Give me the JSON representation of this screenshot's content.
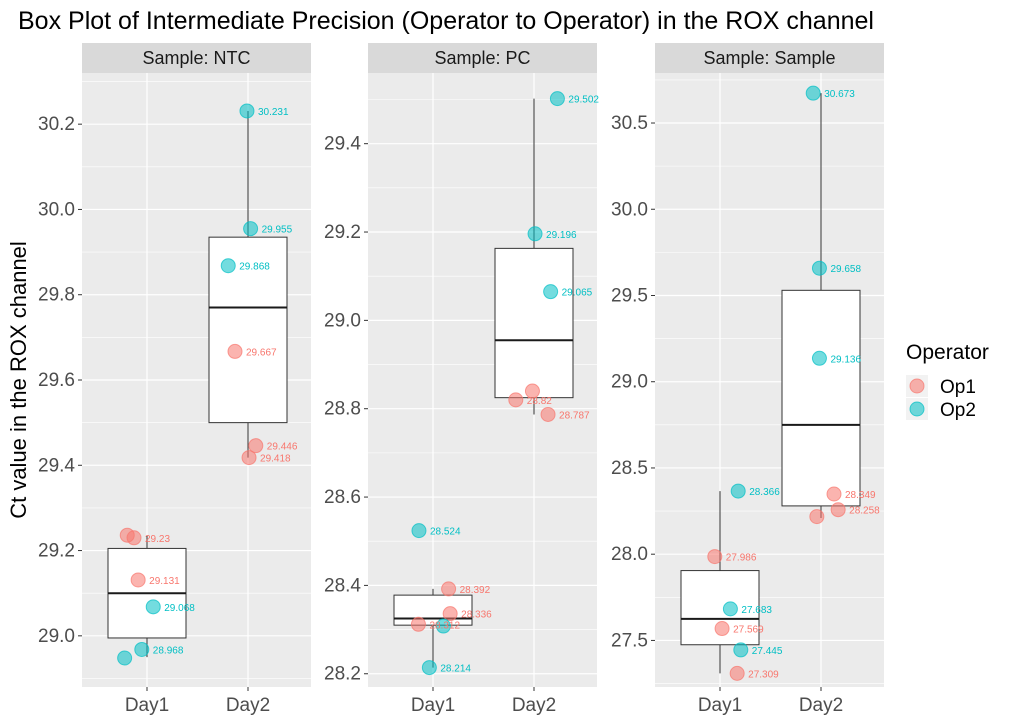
{
  "chart_data": {
    "type": "box",
    "title": "Box Plot of Intermediate Precision (Operator to Operator) in the ROX channel",
    "ylabel": "Ct value in the ROX channel",
    "xlabel": "",
    "categories": [
      "Day1",
      "Day2"
    ],
    "legend": {
      "title": "Operator",
      "placement": "right",
      "items": [
        {
          "name": "Op1",
          "color": "#F8766D"
        },
        {
          "name": "Op2",
          "color": "#00BFC4"
        }
      ]
    },
    "colors": {
      "panel_bg": "#EBEBEB",
      "strip_bg": "#D9D9D9",
      "grid": "#FFFFFF",
      "op1": "#F8766D",
      "op2": "#00BFC4"
    },
    "facets": [
      {
        "label": "Sample: NTC",
        "ylim": [
          28.88,
          30.32
        ],
        "yticks": [
          29.0,
          29.2,
          29.4,
          29.6,
          29.8,
          30.0,
          30.2
        ],
        "ytick_labels": [
          "29.0",
          "29.2",
          "29.4",
          "29.6",
          "29.8",
          "30.0",
          "30.2"
        ],
        "boxes": [
          {
            "category": "Day1",
            "lower_whisker": 28.95,
            "q1": 28.995,
            "median": 29.1,
            "q3": 29.205,
            "upper_whisker": 29.235
          },
          {
            "category": "Day2",
            "lower_whisker": 29.418,
            "q1": 29.5,
            "median": 29.77,
            "q3": 29.935,
            "upper_whisker": 30.231
          }
        ],
        "points": [
          {
            "category": "Day1",
            "operator": "Op1",
            "jitter": -0.38,
            "value": 29.236
          },
          {
            "category": "Day1",
            "operator": "Op1",
            "jitter": -0.25,
            "value": 29.23,
            "label": "29.23"
          },
          {
            "category": "Day1",
            "operator": "Op1",
            "jitter": -0.17,
            "value": 29.131,
            "label": "29.131"
          },
          {
            "category": "Day1",
            "operator": "Op2",
            "jitter": 0.12,
            "value": 29.068,
            "label": "29.068"
          },
          {
            "category": "Day1",
            "operator": "Op2",
            "jitter": -0.1,
            "value": 28.968,
            "label": "28.968"
          },
          {
            "category": "Day1",
            "operator": "Op2",
            "jitter": -0.43,
            "value": 28.948
          },
          {
            "category": "Day2",
            "operator": "Op2",
            "jitter": -0.02,
            "value": 30.231,
            "label": "30.231"
          },
          {
            "category": "Day2",
            "operator": "Op2",
            "jitter": 0.05,
            "value": 29.955,
            "label": "29.955"
          },
          {
            "category": "Day2",
            "operator": "Op2",
            "jitter": -0.38,
            "value": 29.868,
            "label": "29.868"
          },
          {
            "category": "Day2",
            "operator": "Op1",
            "jitter": -0.25,
            "value": 29.667,
            "label": "29.667"
          },
          {
            "category": "Day2",
            "operator": "Op1",
            "jitter": 0.15,
            "value": 29.446,
            "label": "29.446"
          },
          {
            "category": "Day2",
            "operator": "Op1",
            "jitter": 0.02,
            "value": 29.418,
            "label": "29.418"
          }
        ]
      },
      {
        "label": "Sample: PC",
        "ylim": [
          28.17,
          29.56
        ],
        "yticks": [
          28.2,
          28.4,
          28.6,
          28.8,
          29.0,
          29.2,
          29.4
        ],
        "ytick_labels": [
          "28.2",
          "28.4",
          "28.6",
          "28.8",
          "29.0",
          "29.2",
          "29.4"
        ],
        "boxes": [
          {
            "category": "Day1",
            "lower_whisker": 28.214,
            "q1": 28.31,
            "median": 28.325,
            "q3": 28.378,
            "upper_whisker": 28.392
          },
          {
            "category": "Day2",
            "lower_whisker": 28.787,
            "q1": 28.825,
            "median": 28.955,
            "q3": 29.163,
            "upper_whisker": 29.502
          }
        ],
        "points": [
          {
            "category": "Day1",
            "operator": "Op2",
            "jitter": -0.27,
            "value": 28.524,
            "label": "28.524"
          },
          {
            "category": "Day1",
            "operator": "Op1",
            "jitter": 0.3,
            "value": 28.392,
            "label": "28.392"
          },
          {
            "category": "Day1",
            "operator": "Op1",
            "jitter": 0.33,
            "value": 28.336,
            "label": "28.336"
          },
          {
            "category": "Day1",
            "operator": "Op1",
            "jitter": -0.28,
            "value": 28.312,
            "label": "28.312"
          },
          {
            "category": "Day1",
            "operator": "Op2",
            "jitter": 0.2,
            "value": 28.308
          },
          {
            "category": "Day1",
            "operator": "Op2",
            "jitter": -0.07,
            "value": 28.214,
            "label": "28.214"
          },
          {
            "category": "Day2",
            "operator": "Op2",
            "jitter": 0.45,
            "value": 29.502,
            "label": "29.502"
          },
          {
            "category": "Day2",
            "operator": "Op2",
            "jitter": 0.02,
            "value": 29.196,
            "label": "29.196"
          },
          {
            "category": "Day2",
            "operator": "Op2",
            "jitter": 0.32,
            "value": 29.065,
            "label": "29.065"
          },
          {
            "category": "Day2",
            "operator": "Op1",
            "jitter": -0.03,
            "value": 28.84
          },
          {
            "category": "Day2",
            "operator": "Op1",
            "jitter": -0.35,
            "value": 28.82,
            "label": "28.82"
          },
          {
            "category": "Day2",
            "operator": "Op1",
            "jitter": 0.27,
            "value": 28.787,
            "label": "28.787"
          }
        ]
      },
      {
        "label": "Sample: Sample",
        "ylim": [
          27.23,
          30.79
        ],
        "yticks": [
          27.5,
          28.0,
          28.5,
          29.0,
          29.5,
          30.0,
          30.5
        ],
        "ytick_labels": [
          "27.5",
          "28.0",
          "28.5",
          "29.0",
          "29.5",
          "30.0",
          "30.5"
        ],
        "boxes": [
          {
            "category": "Day1",
            "lower_whisker": 27.309,
            "q1": 27.475,
            "median": 27.625,
            "q3": 27.905,
            "upper_whisker": 28.366
          },
          {
            "category": "Day2",
            "lower_whisker": 28.21,
            "q1": 28.28,
            "median": 28.75,
            "q3": 29.53,
            "upper_whisker": 30.673
          }
        ],
        "points": [
          {
            "category": "Day1",
            "operator": "Op2",
            "jitter": 0.35,
            "value": 28.366,
            "label": "28.366"
          },
          {
            "category": "Day1",
            "operator": "Op1",
            "jitter": -0.1,
            "value": 27.986,
            "label": "27.986"
          },
          {
            "category": "Day1",
            "operator": "Op2",
            "jitter": 0.2,
            "value": 27.683,
            "label": "27.683"
          },
          {
            "category": "Day1",
            "operator": "Op1",
            "jitter": 0.04,
            "value": 27.569,
            "label": "27.569"
          },
          {
            "category": "Day1",
            "operator": "Op2",
            "jitter": 0.4,
            "value": 27.445,
            "label": "27.445"
          },
          {
            "category": "Day1",
            "operator": "Op1",
            "jitter": 0.33,
            "value": 27.309,
            "label": "27.309"
          },
          {
            "category": "Day2",
            "operator": "Op2",
            "jitter": -0.15,
            "value": 30.673,
            "label": "30.673"
          },
          {
            "category": "Day2",
            "operator": "Op2",
            "jitter": -0.03,
            "value": 29.658,
            "label": "29.658"
          },
          {
            "category": "Day2",
            "operator": "Op2",
            "jitter": -0.03,
            "value": 29.136,
            "label": "29.136"
          },
          {
            "category": "Day2",
            "operator": "Op1",
            "jitter": 0.25,
            "value": 28.349,
            "label": "28.349"
          },
          {
            "category": "Day2",
            "operator": "Op1",
            "jitter": 0.33,
            "value": 28.258,
            "label": "28.258"
          },
          {
            "category": "Day2",
            "operator": "Op1",
            "jitter": -0.08,
            "value": 28.218
          }
        ]
      }
    ]
  }
}
